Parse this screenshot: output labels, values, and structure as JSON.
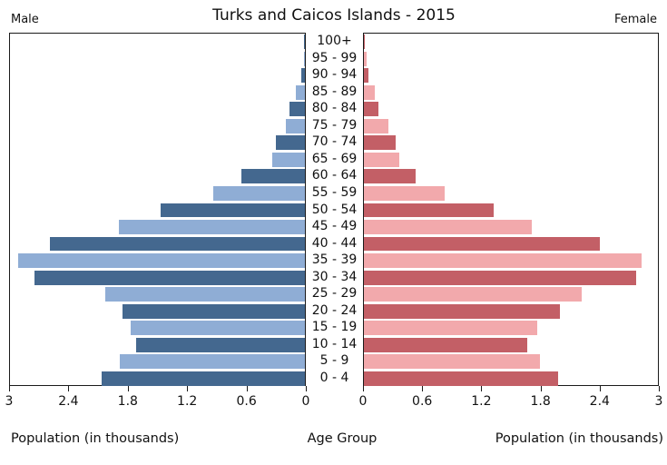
{
  "header": {
    "title": "Turks and Caicos Islands - 2015",
    "left_label": "Male",
    "right_label": "Female"
  },
  "axes": {
    "male_ticks": [
      "3",
      "2.4",
      "1.8",
      "1.2",
      "0.6",
      "0"
    ],
    "female_ticks": [
      "0",
      "0.6",
      "1.2",
      "1.8",
      "2.4",
      "3"
    ],
    "male_axis_title": "Population (in thousands)",
    "female_axis_title": "Population (in thousands)",
    "center_axis_title": "Age Group",
    "xmax": 3
  },
  "colors": {
    "male_dark": "#44688F",
    "male_light": "#8FADD5",
    "female_dark": "#C35F66",
    "female_light": "#F2A9AC",
    "axis": "#1a1a1a"
  },
  "chart_data": {
    "type": "bar",
    "subtype": "population-pyramid",
    "title": "Turks and Caicos Islands - 2015",
    "unit": "thousands",
    "xlabel_left": "Population (in thousands)",
    "xlabel_right": "Population (in thousands)",
    "ylabel": "Age Group",
    "xlim_male": [
      3,
      0
    ],
    "xlim_female": [
      0,
      3
    ],
    "grid": false,
    "age_groups": [
      "100+",
      "95 - 99",
      "90 - 94",
      "85 - 89",
      "80 - 84",
      "75 - 79",
      "70 - 74",
      "65 - 69",
      "60 - 64",
      "55 - 59",
      "50 - 54",
      "45 - 49",
      "40 - 44",
      "35 - 39",
      "30 - 34",
      "25 - 29",
      "20 - 24",
      "15 - 19",
      "10 - 14",
      "5 - 9",
      "0 - 4"
    ],
    "series": [
      {
        "name": "Male",
        "values": [
          0.01,
          0.01,
          0.04,
          0.09,
          0.16,
          0.19,
          0.3,
          0.33,
          0.65,
          0.93,
          1.47,
          1.89,
          2.59,
          2.92,
          2.75,
          2.03,
          1.86,
          1.77,
          1.72,
          1.88,
          2.07
        ]
      },
      {
        "name": "Female",
        "values": [
          0.01,
          0.03,
          0.05,
          0.11,
          0.15,
          0.25,
          0.32,
          0.36,
          0.53,
          0.82,
          1.32,
          1.71,
          2.41,
          2.83,
          2.78,
          2.22,
          2.0,
          1.77,
          1.67,
          1.8,
          1.98
        ]
      }
    ]
  }
}
